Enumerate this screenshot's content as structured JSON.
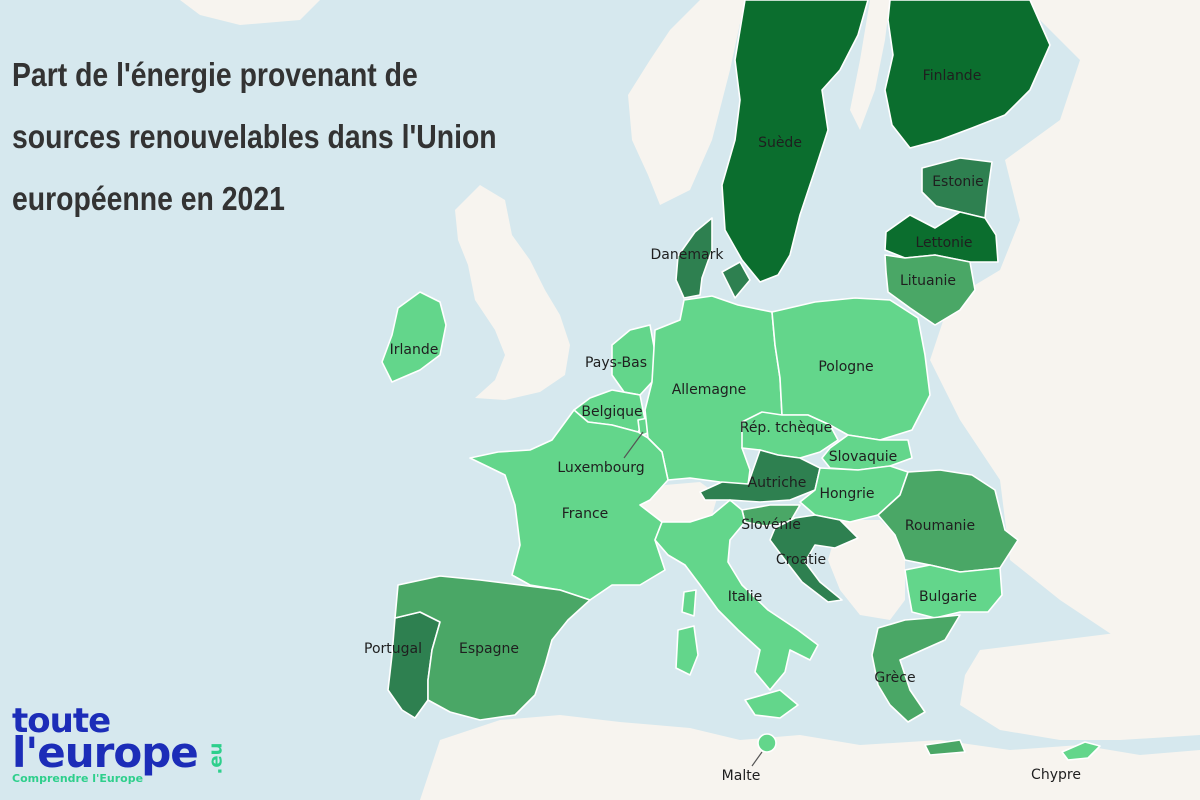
{
  "title": {
    "lines": [
      "Part de l'énergie provenant de",
      "sources renouvelables dans l'Union",
      "européenne en 2021"
    ]
  },
  "colors": {
    "sea": "#d6e8ee",
    "non_eu": "#f7f4ef",
    "level_1": "#63d68b",
    "level_2": "#4aa766",
    "level_3": "#2e8050",
    "level_4": "#0b6e2e",
    "border": "#ffffff"
  },
  "countries": [
    {
      "id": "suede",
      "label": "Suède",
      "level": 4
    },
    {
      "id": "finlande",
      "label": "Finlande",
      "level": 4
    },
    {
      "id": "estonie",
      "label": "Estonie",
      "level": 3
    },
    {
      "id": "lettonie",
      "label": "Lettonie",
      "level": 4
    },
    {
      "id": "lituanie",
      "label": "Lituanie",
      "level": 2
    },
    {
      "id": "danemark",
      "label": "Danemark",
      "level": 3
    },
    {
      "id": "irlande",
      "label": "Irlande",
      "level": 1
    },
    {
      "id": "pays-bas",
      "label": "Pays-Bas",
      "level": 1
    },
    {
      "id": "belgique",
      "label": "Belgique",
      "level": 1
    },
    {
      "id": "luxembourg",
      "label": "Luxembourg",
      "level": 1
    },
    {
      "id": "allemagne",
      "label": "Allemagne",
      "level": 1
    },
    {
      "id": "pologne",
      "label": "Pologne",
      "level": 1
    },
    {
      "id": "rep-tcheque",
      "label": "Rép. tchèque",
      "level": 1
    },
    {
      "id": "slovaquie",
      "label": "Slovaquie",
      "level": 1
    },
    {
      "id": "autriche",
      "label": "Autriche",
      "level": 3
    },
    {
      "id": "hongrie",
      "label": "Hongrie",
      "level": 1
    },
    {
      "id": "france",
      "label": "France",
      "level": 1
    },
    {
      "id": "slovenie",
      "label": "Slovénie",
      "level": 2
    },
    {
      "id": "croatie",
      "label": "Croatie",
      "level": 3
    },
    {
      "id": "roumanie",
      "label": "Roumanie",
      "level": 2
    },
    {
      "id": "bulgarie",
      "label": "Bulgarie",
      "level": 1
    },
    {
      "id": "italie",
      "label": "Italie",
      "level": 1
    },
    {
      "id": "portugal",
      "label": "Portugal",
      "level": 3
    },
    {
      "id": "espagne",
      "label": "Espagne",
      "level": 2
    },
    {
      "id": "grece",
      "label": "Grèce",
      "level": 2
    },
    {
      "id": "malte",
      "label": "Malte",
      "level": 1
    },
    {
      "id": "chypre",
      "label": "Chypre",
      "level": 1
    }
  ],
  "logo": {
    "line1": "toute",
    "line2": "l'europe",
    "suffix": ".eu",
    "tagline": "Comprendre l'Europe"
  }
}
